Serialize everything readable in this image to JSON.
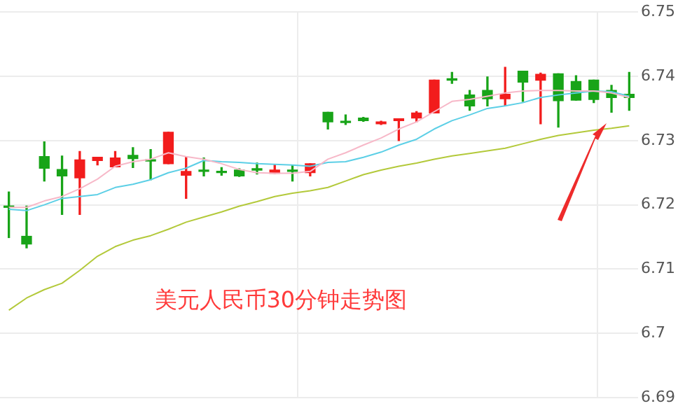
{
  "chart_data": {
    "type": "candlestick",
    "title": "美元人民币30分钟走势图",
    "categories": [
      null,
      null,
      null,
      null,
      null,
      null,
      null,
      null,
      null,
      null,
      null,
      null,
      null,
      null,
      null,
      null,
      null,
      null,
      null,
      null,
      null,
      null,
      null,
      null,
      null,
      null,
      null,
      null,
      null,
      null,
      null,
      null,
      null,
      null,
      null,
      null
    ],
    "ohlc": [
      [
        6.7197,
        6.722,
        6.7149,
        6.7196
      ],
      [
        6.7151,
        6.7198,
        6.7133,
        6.7139
      ],
      [
        6.7275,
        6.7298,
        6.7237,
        6.7257
      ],
      [
        6.7255,
        6.7276,
        6.7185,
        6.7245
      ],
      [
        6.7242,
        6.7283,
        6.7185,
        6.727
      ],
      [
        6.7269,
        6.7274,
        6.7262,
        6.7274
      ],
      [
        6.7259,
        6.7283,
        6.7259,
        6.7273
      ],
      [
        6.7277,
        6.7289,
        6.7258,
        6.7272
      ],
      [
        6.7269,
        6.7286,
        6.7239,
        6.7268
      ],
      [
        6.7264,
        6.7313,
        6.7264,
        6.7313
      ],
      [
        6.7246,
        6.7274,
        6.721,
        6.7252
      ],
      [
        6.7253,
        6.7273,
        6.7245,
        6.7252
      ],
      [
        6.7251,
        6.7258,
        6.7246,
        6.725
      ],
      [
        6.7254,
        6.7256,
        6.7244,
        6.7245
      ],
      [
        6.7255,
        6.7265,
        6.7248,
        6.7254
      ],
      [
        6.7249,
        6.7263,
        6.7249,
        6.7254
      ],
      [
        6.7253,
        6.7262,
        6.7237,
        6.7252
      ],
      [
        6.725,
        6.7264,
        6.7245,
        6.7264
      ],
      [
        6.7344,
        6.7344,
        6.7318,
        6.7329
      ],
      [
        6.7329,
        6.734,
        6.7325,
        6.7328
      ],
      [
        6.7335,
        6.7336,
        6.733,
        6.7331
      ],
      [
        6.7326,
        6.733,
        6.7325,
        6.7329
      ],
      [
        6.7331,
        6.7334,
        6.73,
        6.7334
      ],
      [
        6.7335,
        6.7345,
        6.7329,
        6.7343
      ],
      [
        6.7343,
        6.7394,
        6.7343,
        6.7394
      ],
      [
        6.7395,
        6.7406,
        6.7389,
        6.7394
      ],
      [
        6.7371,
        6.7378,
        6.7347,
        6.7354
      ],
      [
        6.7378,
        6.7399,
        6.7354,
        6.7365
      ],
      [
        6.7365,
        6.7414,
        6.7355,
        6.7372
      ],
      [
        6.7408,
        6.7408,
        6.7361,
        6.7391
      ],
      [
        6.7394,
        6.7405,
        6.7326,
        6.7403
      ],
      [
        6.7404,
        6.7404,
        6.7321,
        6.7362
      ],
      [
        6.7392,
        6.7401,
        6.7363,
        6.7363
      ],
      [
        6.7394,
        6.7394,
        6.7359,
        6.7364
      ],
      [
        6.7378,
        6.7386,
        6.7344,
        6.7367
      ],
      [
        6.7372,
        6.7406,
        6.7347,
        6.7367
      ]
    ],
    "colors": [
      "#18a418",
      "#18a418",
      "#18a418",
      "#18a418",
      "#f21c1c",
      "#f21c1c",
      "#f21c1c",
      "#18a418",
      "#18a418",
      "#f21c1c",
      "#f21c1c",
      "#18a418",
      "#18a418",
      "#18a418",
      "#18a418",
      "#f21c1c",
      "#18a418",
      "#f21c1c",
      "#18a418",
      "#18a418",
      "#18a418",
      "#f21c1c",
      "#f21c1c",
      "#f21c1c",
      "#f21c1c",
      "#18a418",
      "#18a418",
      "#18a418",
      "#f21c1c",
      "#18a418",
      "#f21c1c",
      "#18a418",
      "#18a418",
      "#18a418",
      "#18a418",
      "#18a418"
    ],
    "series": [
      {
        "type": "line",
        "color": "#f7b8c8",
        "values": [
          6.7196,
          6.7196,
          6.7206,
          6.7213,
          6.7225,
          6.724,
          6.726,
          6.7267,
          6.7271,
          6.7281,
          6.7275,
          6.7271,
          6.7264,
          6.7255,
          6.725,
          6.7249,
          6.7249,
          6.7252,
          6.7271,
          6.7281,
          6.7293,
          6.7304,
          6.7318,
          6.7329,
          6.7345,
          6.7361,
          6.7364,
          6.7369,
          6.7374,
          6.7377,
          6.7378,
          6.7378,
          6.7377,
          6.7377,
          6.7374,
          6.7367
        ]
      },
      {
        "type": "line",
        "color": "#5ccfe6",
        "values": [
          6.7193,
          6.7191,
          6.72,
          6.721,
          6.7213,
          6.7216,
          6.7227,
          6.7232,
          6.7239,
          6.725,
          6.7257,
          6.7269,
          6.7267,
          6.7266,
          6.7264,
          6.7263,
          6.7262,
          6.726,
          6.7266,
          6.7267,
          6.7274,
          6.7282,
          6.7293,
          6.7302,
          6.7318,
          6.7331,
          6.734,
          6.735,
          6.7354,
          6.7359,
          6.7367,
          6.7371,
          6.7374,
          6.7377,
          6.7376,
          6.7369
        ]
      },
      {
        "type": "line",
        "color": "#b3c93a",
        "values": [
          6.7036,
          6.7055,
          6.7068,
          6.7078,
          6.7098,
          6.712,
          6.7135,
          6.7145,
          6.7152,
          6.7162,
          6.7173,
          6.7181,
          6.7189,
          6.7198,
          6.7205,
          6.7213,
          6.7218,
          6.7222,
          6.7227,
          6.7237,
          6.7247,
          6.7254,
          6.726,
          6.7265,
          6.7271,
          6.7276,
          6.728,
          6.7284,
          6.7288,
          6.7295,
          6.7302,
          6.7308,
          6.7312,
          6.7316,
          6.7319,
          6.7323
        ]
      }
    ],
    "ylim": [
      6.69,
      6.75
    ],
    "yticks": [
      6.69,
      6.7,
      6.71,
      6.72,
      6.73,
      6.74,
      6.75
    ],
    "grid": "y",
    "tick_labels": "y"
  }
}
